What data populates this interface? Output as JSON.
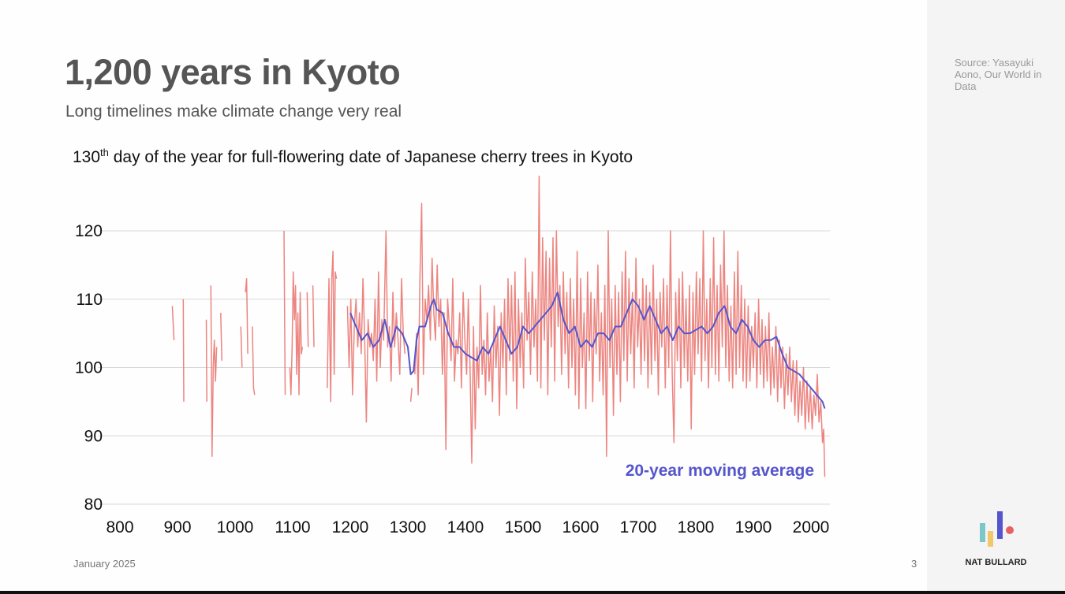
{
  "header": {
    "title": "1,200 years in Kyoto",
    "subtitle": "Long timelines make climate change very real"
  },
  "source": "Source: Yasayuki Aono, Our World in Data",
  "footer": {
    "date": "January 2025",
    "page": "3",
    "brand": "NAT BULLARD"
  },
  "chart_data": {
    "type": "line",
    "title_parts": [
      "130",
      "th",
      " day of the year for full-flowering date of Japanese cherry trees in Kyoto"
    ],
    "xlim": [
      800,
      2033
    ],
    "ylim": [
      80,
      128
    ],
    "xticks": [
      800,
      900,
      1000,
      1100,
      1200,
      1300,
      1400,
      1500,
      1600,
      1700,
      1800,
      1900,
      2000
    ],
    "yticks": [
      80,
      90,
      100,
      110,
      120
    ],
    "grid": true,
    "series": [
      {
        "color": "#ec8580",
        "x": [
          891,
          894,
          898,
          910,
          911,
          913,
          950,
          951,
          953,
          958,
          960,
          962,
          964,
          966,
          968,
          970,
          975,
          977,
          979,
          1010,
          1012,
          1014,
          1018,
          1020,
          1022,
          1024,
          1030,
          1032,
          1034,
          1036,
          1085,
          1087,
          1089,
          1095,
          1097,
          1099,
          1101,
          1103,
          1105,
          1107,
          1109,
          1111,
          1113,
          1115,
          1117,
          1119,
          1125,
          1127,
          1129,
          1135,
          1137,
          1139,
          1160,
          1163,
          1166,
          1168,
          1170,
          1172,
          1174,
          1176,
          1178,
          1195,
          1198,
          1201,
          1204,
          1207,
          1210,
          1213,
          1216,
          1219,
          1222,
          1225,
          1228,
          1231,
          1234,
          1237,
          1240,
          1243,
          1246,
          1249,
          1252,
          1255,
          1258,
          1262,
          1265,
          1268,
          1271,
          1274,
          1277,
          1280,
          1283,
          1286,
          1289,
          1292,
          1295,
          1298,
          1305,
          1307,
          1309,
          1312,
          1315,
          1318,
          1321,
          1324,
          1327,
          1330,
          1333,
          1336,
          1339,
          1342,
          1345,
          1348,
          1351,
          1354,
          1357,
          1360,
          1363,
          1366,
          1369,
          1372,
          1375,
          1378,
          1381,
          1384,
          1387,
          1390,
          1393,
          1396,
          1399,
          1402,
          1405,
          1408,
          1411,
          1414,
          1417,
          1420,
          1423,
          1426,
          1429,
          1432,
          1435,
          1438,
          1441,
          1444,
          1447,
          1450,
          1453,
          1456,
          1459,
          1462,
          1465,
          1468,
          1471,
          1474,
          1477,
          1480,
          1483,
          1486,
          1489,
          1492,
          1495,
          1498,
          1501,
          1504,
          1507,
          1510,
          1513,
          1516,
          1519,
          1522,
          1525,
          1528,
          1531,
          1534,
          1537,
          1540,
          1543,
          1546,
          1549,
          1552,
          1555,
          1558,
          1561,
          1564,
          1567,
          1570,
          1573,
          1576,
          1579,
          1582,
          1585,
          1588,
          1591,
          1594,
          1597,
          1600,
          1603,
          1606,
          1609,
          1612,
          1615,
          1618,
          1621,
          1624,
          1627,
          1630,
          1633,
          1636,
          1639,
          1642,
          1645,
          1648,
          1651,
          1654,
          1657,
          1660,
          1663,
          1666,
          1669,
          1672,
          1675,
          1678,
          1681,
          1684,
          1687,
          1690,
          1693,
          1696,
          1699,
          1702,
          1705,
          1708,
          1711,
          1714,
          1717,
          1720,
          1723,
          1726,
          1729,
          1732,
          1735,
          1738,
          1741,
          1744,
          1747,
          1750,
          1753,
          1756,
          1759,
          1762,
          1765,
          1768,
          1771,
          1774,
          1777,
          1780,
          1783,
          1786,
          1789,
          1792,
          1795,
          1798,
          1801,
          1804,
          1807,
          1810,
          1813,
          1816,
          1819,
          1822,
          1825,
          1828,
          1831,
          1834,
          1837,
          1840,
          1843,
          1846,
          1849,
          1852,
          1855,
          1858,
          1861,
          1864,
          1867,
          1870,
          1873,
          1876,
          1879,
          1882,
          1885,
          1888,
          1891,
          1894,
          1897,
          1900,
          1903,
          1906,
          1909,
          1912,
          1915,
          1918,
          1921,
          1924,
          1927,
          1930,
          1933,
          1936,
          1939,
          1942,
          1945,
          1948,
          1951,
          1954,
          1957,
          1960,
          1963,
          1966,
          1969,
          1972,
          1975,
          1978,
          1981,
          1984,
          1987,
          1990,
          1993,
          1996,
          1999,
          2002,
          2005,
          2008,
          2011,
          2014,
          2017,
          2020,
          2022,
          2024
        ],
        "values": [
          109,
          104,
          null,
          110,
          95,
          null,
          107,
          95,
          null,
          112,
          87,
          100,
          104,
          98,
          103,
          null,
          108,
          101,
          null,
          106,
          100,
          null,
          111,
          113,
          102,
          null,
          106,
          97,
          96,
          null,
          120,
          96,
          null,
          100,
          96,
          103,
          114,
          107,
          112,
          99,
          108,
          96,
          111,
          102,
          103,
          null,
          111,
          103,
          null,
          112,
          103,
          null,
          97,
          113,
          95,
          113,
          117,
          99,
          114,
          113,
          null,
          109,
          100,
          110,
          96,
          106,
          110,
          103,
          108,
          102,
          113,
          104,
          92,
          107,
          103,
          105,
          101,
          110,
          98,
          114,
          100,
          107,
          104,
          120,
          103,
          106,
          98,
          111,
          103,
          108,
          104,
          99,
          113,
          105,
          102,
          null,
          95,
          97,
          null,
          99,
          105,
          96,
          113,
          124,
          99,
          110,
          107,
          112,
          104,
          116,
          108,
          104,
          115,
          106,
          110,
          99,
          108,
          88,
          110,
          106,
          101,
          113,
          98,
          104,
          102,
          108,
          97,
          111,
          104,
          99,
          110,
          100,
          86,
          106,
          91,
          103,
          97,
          112,
          99,
          104,
          96,
          108,
          98,
          103,
          95,
          109,
          100,
          106,
          93,
          108,
          100,
          110,
          96,
          113,
          101,
          112,
          98,
          114,
          94,
          110,
          100,
          108,
          97,
          116,
          104,
          111,
          99,
          114,
          103,
          110,
          98,
          128,
          97,
          119,
          104,
          117,
          96,
          116,
          103,
          119,
          98,
          120,
          106,
          112,
          99,
          114,
          102,
          111,
          97,
          113,
          100,
          110,
          96,
          117,
          94,
          113,
          100,
          108,
          94,
          114,
          101,
          111,
          95,
          110,
          102,
          115,
          98,
          108,
          96,
          112,
          87,
          120,
          100,
          110,
          93,
          112,
          99,
          111,
          95,
          114,
          101,
          117,
          98,
          113,
          102,
          111,
          97,
          116,
          103,
          110,
          99,
          113,
          101,
          112,
          97,
          111,
          99,
          115,
          101,
          110,
          96,
          111,
          103,
          113,
          97,
          112,
          100,
          120,
          99,
          89,
          111,
          101,
          113,
          97,
          114,
          100,
          110,
          98,
          112,
          91,
          111,
          99,
          114,
          102,
          113,
          98,
          120,
          101,
          110,
          97,
          113,
          100,
          119,
          99,
          112,
          98,
          115,
          103,
          120,
          100,
          112,
          98,
          109,
          97,
          114,
          99,
          117,
          100,
          112,
          98,
          110,
          97,
          109,
          98,
          106,
          100,
          108,
          97,
          110,
          99,
          107,
          97,
          106,
          98,
          108,
          96,
          103,
          97,
          106,
          95,
          104,
          97,
          103,
          94,
          102,
          96,
          103,
          95,
          101,
          93,
          101,
          92,
          98,
          93,
          100,
          91,
          98,
          92,
          97,
          91,
          96,
          93,
          99,
          92,
          95,
          89,
          91,
          84
        ]
      },
      {
        "name": "20-year moving average",
        "color": "#5555cc",
        "x": [
          1200,
          1210,
          1220,
          1230,
          1240,
          1250,
          1260,
          1270,
          1280,
          1290,
          1300,
          1305,
          1310,
          1315,
          1320,
          1330,
          1340,
          1345,
          1350,
          1360,
          1370,
          1380,
          1390,
          1400,
          1410,
          1420,
          1430,
          1440,
          1450,
          1460,
          1470,
          1480,
          1490,
          1500,
          1510,
          1520,
          1530,
          1540,
          1550,
          1560,
          1570,
          1580,
          1590,
          1600,
          1610,
          1620,
          1630,
          1640,
          1650,
          1660,
          1670,
          1680,
          1690,
          1700,
          1710,
          1720,
          1730,
          1740,
          1750,
          1760,
          1770,
          1780,
          1790,
          1800,
          1810,
          1820,
          1830,
          1840,
          1850,
          1860,
          1870,
          1880,
          1890,
          1900,
          1910,
          1920,
          1930,
          1940,
          1950,
          1960,
          1970,
          1980,
          1990,
          2000,
          2010,
          2020,
          2024
        ],
        "values": [
          108,
          106,
          104,
          105,
          103,
          104,
          107,
          103,
          106,
          105,
          103,
          99,
          99.5,
          104,
          106,
          106,
          109,
          110,
          108.5,
          108,
          105,
          103,
          103,
          102,
          101.5,
          101,
          103,
          102,
          104,
          106,
          104,
          102,
          103,
          106,
          105,
          106,
          107,
          108,
          109,
          111,
          107,
          105,
          106,
          103,
          104,
          103,
          105,
          105,
          104,
          106,
          106,
          108,
          110,
          109,
          107,
          109,
          107,
          105,
          106,
          104,
          106,
          105,
          105,
          105.5,
          106,
          105,
          106,
          108,
          109,
          106,
          105,
          107,
          106,
          104,
          103,
          104,
          104,
          104.5,
          102,
          100,
          99.5,
          99,
          98,
          97,
          96,
          95,
          94
        ]
      }
    ]
  }
}
